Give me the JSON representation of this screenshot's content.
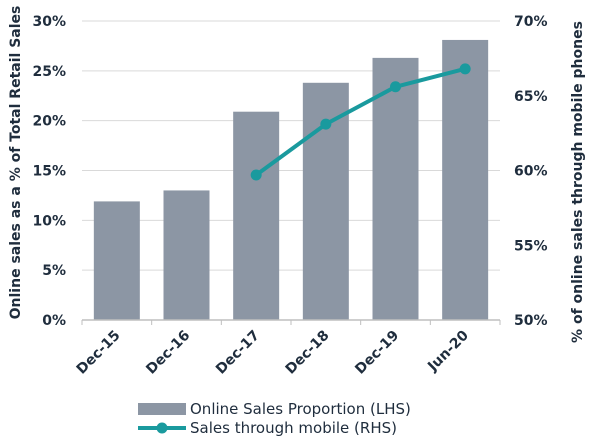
{
  "chart_data": {
    "type": "bar",
    "categories": [
      "Dec-15",
      "Dec-16",
      "Dec-17",
      "Dec-18",
      "Dec-19",
      "Jun-20"
    ],
    "series": [
      {
        "name": "Online Sales Proportion (LHS)",
        "type": "bar",
        "axis": "left",
        "color": "#8c96a4",
        "values": [
          11.9,
          13.0,
          20.9,
          23.8,
          26.3,
          28.1
        ]
      },
      {
        "name": "Sales through mobile (RHS)",
        "type": "line",
        "axis": "right",
        "color": "#1a9a9e",
        "values": [
          null,
          null,
          59.7,
          63.1,
          65.6,
          66.8
        ]
      }
    ],
    "ylabel": "Online sales as a % of Total Retail Sales",
    "y2label": "% of online sales through mobile phones",
    "ylim": [
      0,
      30
    ],
    "y2lim": [
      50,
      70
    ],
    "yticks": [
      "0%",
      "5%",
      "10%",
      "15%",
      "20%",
      "25%",
      "30%"
    ],
    "y2ticks": [
      "50%",
      "55%",
      "60%",
      "65%",
      "70%"
    ],
    "grid": true,
    "legend_position": "bottom-center",
    "colors": {
      "text": "#1f2d3d",
      "grid": "#d9d9d9",
      "axis": "#bfbfbf"
    }
  }
}
